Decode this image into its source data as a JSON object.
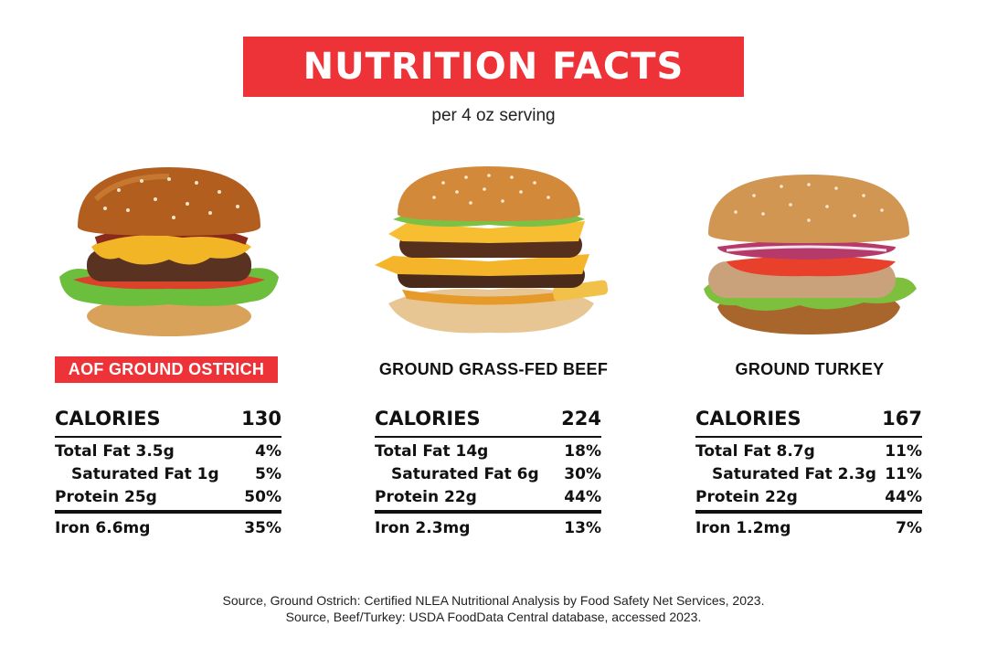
{
  "title": "NUTRITION FACTS",
  "subtitle": "per 4 oz serving",
  "columns": [
    {
      "name": "AOF GROUND OSTRICH",
      "calories_label": "CALORIES",
      "calories": "130",
      "rows": [
        {
          "label": "Total Fat 3.5g",
          "value": "4%"
        },
        {
          "label": "Saturated Fat 1g",
          "value": "5%"
        },
        {
          "label": "Protein 25g",
          "value": "50%"
        },
        {
          "label": "Iron 6.6mg",
          "value": "35%"
        }
      ]
    },
    {
      "name": "GROUND GRASS-FED BEEF",
      "calories_label": "CALORIES",
      "calories": "224",
      "rows": [
        {
          "label": "Total Fat 14g",
          "value": "18%"
        },
        {
          "label": "Saturated Fat 6g",
          "value": "30%"
        },
        {
          "label": "Protein 22g",
          "value": "44%"
        },
        {
          "label": "Iron 2.3mg",
          "value": "13%"
        }
      ]
    },
    {
      "name": "GROUND TURKEY",
      "calories_label": "CALORIES",
      "calories": "167",
      "rows": [
        {
          "label": "Total Fat 8.7g",
          "value": "11%"
        },
        {
          "label": "Saturated Fat 2.3g",
          "value": "11%"
        },
        {
          "label": "Protein 22g",
          "value": "44%"
        },
        {
          "label": "Iron 1.2mg",
          "value": "7%"
        }
      ]
    }
  ],
  "footer": {
    "line1": "Source, Ground Ostrich: Certified NLEA Nutritional Analysis by Food Safety Net Services, 2023.",
    "line2": "Source, Beef/Turkey: USDA FoodData Central database, accessed 2023."
  },
  "colors": {
    "accent": "#ee3338"
  }
}
